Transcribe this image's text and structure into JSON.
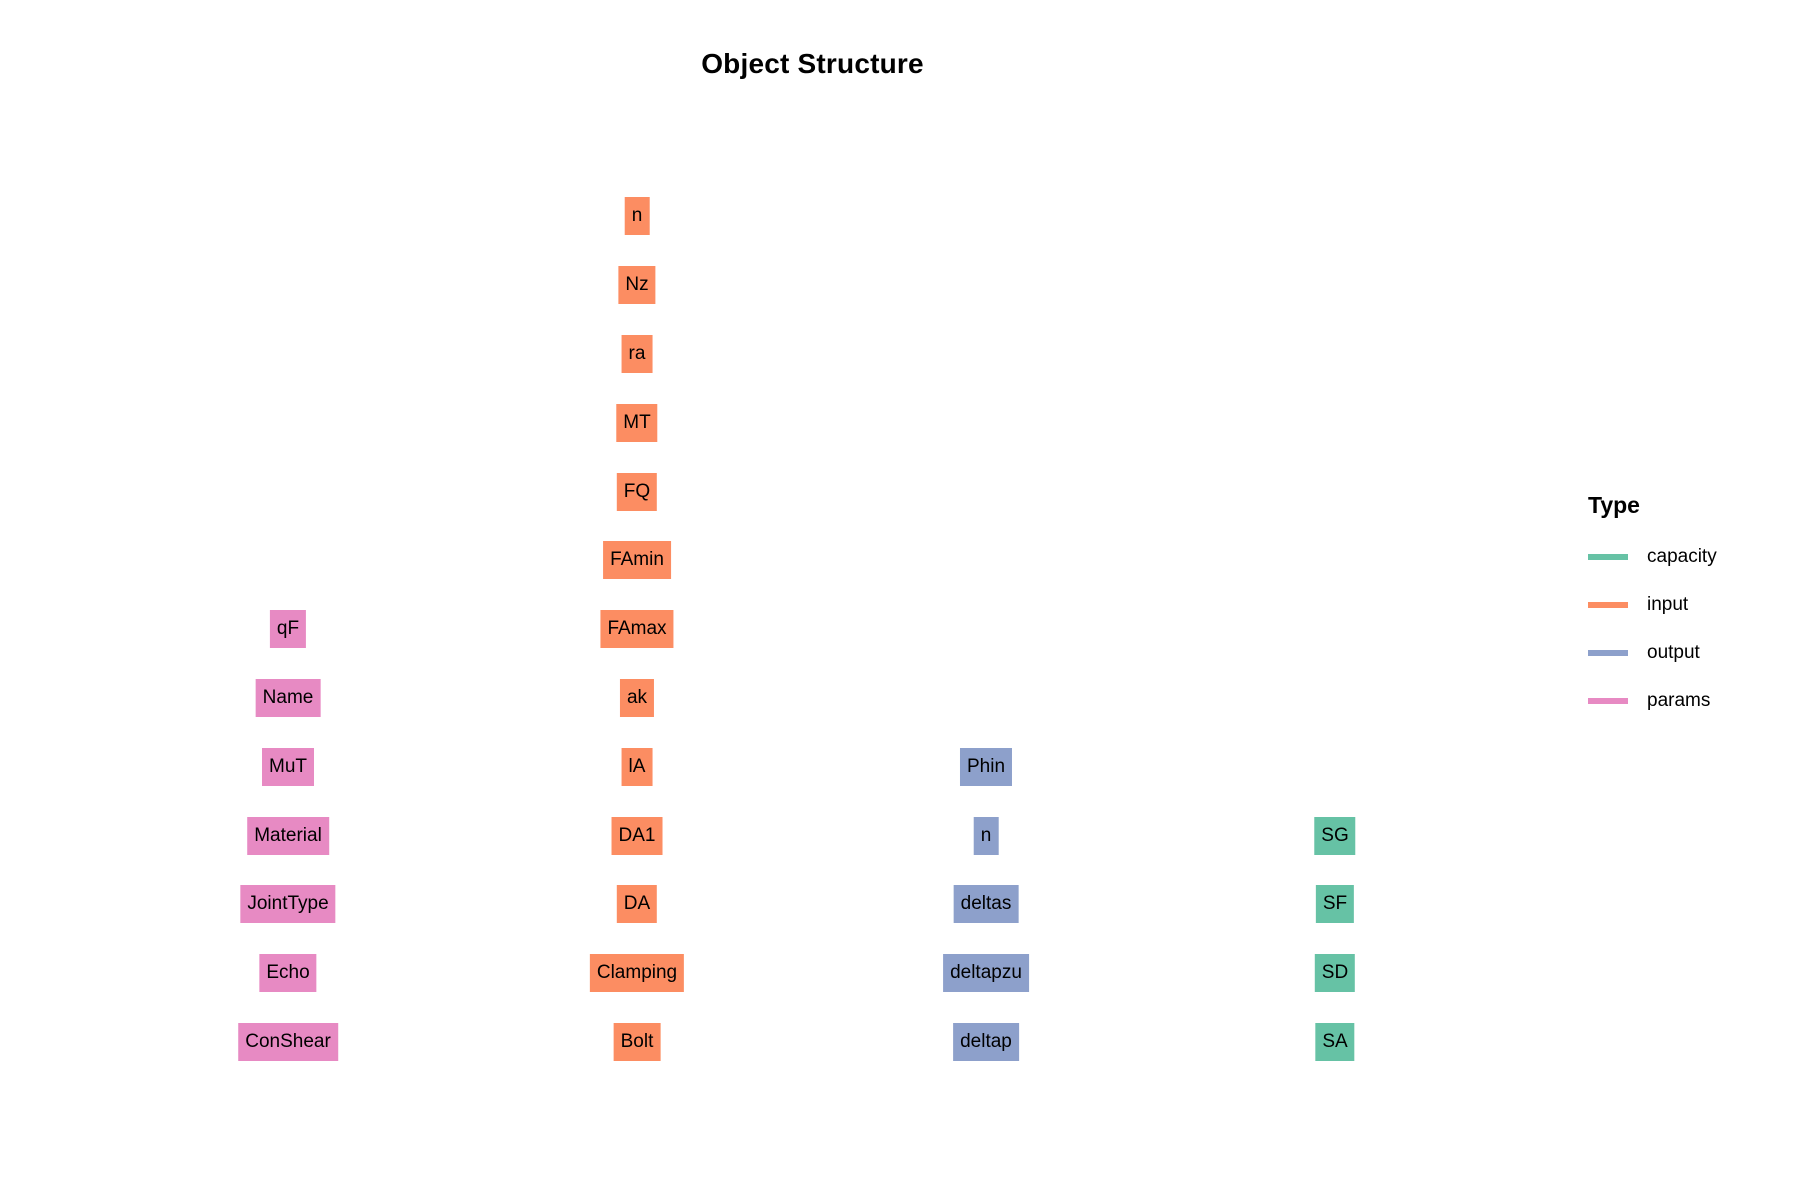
{
  "title": "Object Structure",
  "legend": {
    "title": "Type",
    "items": [
      {
        "key": "capacity",
        "label": "capacity",
        "color": "#66C2A5"
      },
      {
        "key": "input",
        "label": "input",
        "color": "#FC8D62"
      },
      {
        "key": "output",
        "label": "output",
        "color": "#8DA0CB"
      },
      {
        "key": "params",
        "label": "params",
        "color": "#E78AC3"
      }
    ]
  },
  "columns": [
    {
      "type": "params",
      "nodes": [
        "qF",
        "Name",
        "MuT",
        "Material",
        "JointType",
        "Echo",
        "ConShear"
      ]
    },
    {
      "type": "input",
      "nodes": [
        "n",
        "Nz",
        "ra",
        "MT",
        "FQ",
        "FAmin",
        "FAmax",
        "ak",
        "lA",
        "DA1",
        "DA",
        "Clamping",
        "Bolt"
      ]
    },
    {
      "type": "output",
      "nodes": [
        "Phin",
        "n",
        "deltas",
        "deltapzu",
        "deltap"
      ]
    },
    {
      "type": "capacity",
      "nodes": [
        "SG",
        "SF",
        "SD",
        "SA"
      ]
    }
  ]
}
